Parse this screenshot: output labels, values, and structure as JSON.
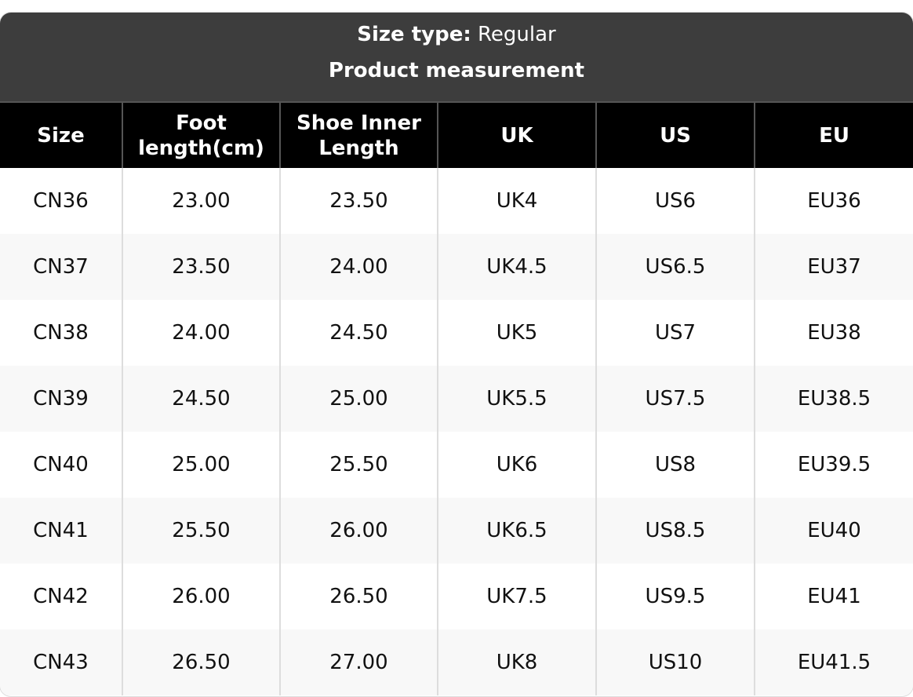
{
  "header": {
    "size_type_label": "Size type:",
    "size_type_value": "Regular",
    "subtitle": "Product measurement"
  },
  "table": {
    "columns": [
      "Size",
      "Foot length(cm)",
      "Shoe Inner Length",
      "UK",
      "US",
      "EU"
    ],
    "rows": [
      [
        "CN36",
        "23.00",
        "23.50",
        "UK4",
        "US6",
        "EU36"
      ],
      [
        "CN37",
        "23.50",
        "24.00",
        "UK4.5",
        "US6.5",
        "EU37"
      ],
      [
        "CN38",
        "24.00",
        "24.50",
        "UK5",
        "US7",
        "EU38"
      ],
      [
        "CN39",
        "24.50",
        "25.00",
        "UK5.5",
        "US7.5",
        "EU38.5"
      ],
      [
        "CN40",
        "25.00",
        "25.50",
        "UK6",
        "US8",
        "EU39.5"
      ],
      [
        "CN41",
        "25.50",
        "26.00",
        "UK6.5",
        "US8.5",
        "EU40"
      ],
      [
        "CN42",
        "26.00",
        "26.50",
        "UK7.5",
        "US9.5",
        "EU41"
      ],
      [
        "CN43",
        "26.50",
        "27.00",
        "UK8",
        "US10",
        "EU41.5"
      ]
    ]
  },
  "colors": {
    "title_bar": "#3d3d3d",
    "header_row": "#000000",
    "alt_row": "#f8f8f8"
  }
}
